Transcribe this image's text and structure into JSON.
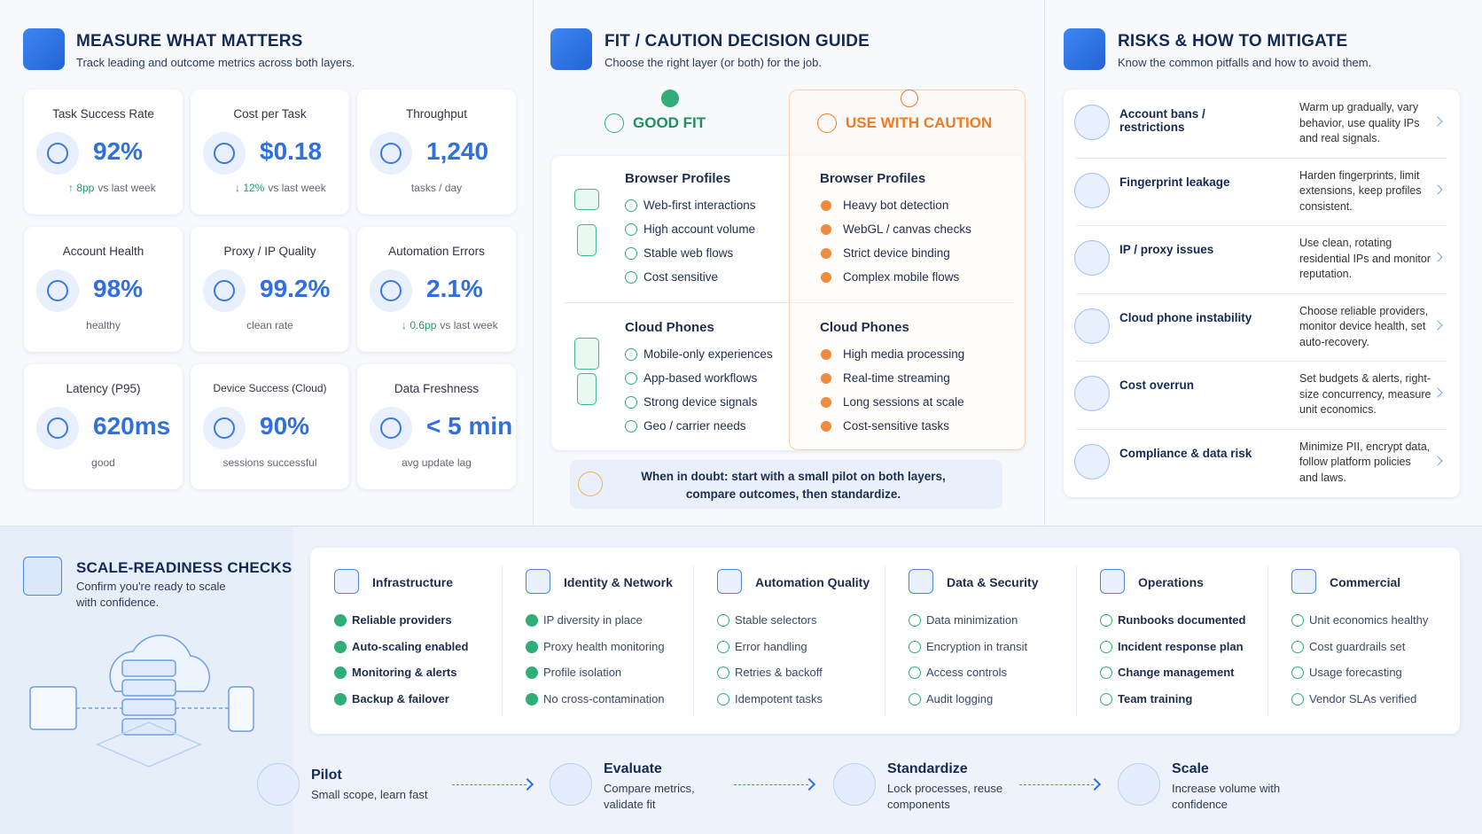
{
  "measure": {
    "title": "MEASURE WHAT MATTERS",
    "subtitle": "Track leading and outcome metrics across both layers.",
    "cards": [
      {
        "label": "Task Success Rate",
        "value": "92%",
        "change": "↑ 8pp",
        "note": "vs last week"
      },
      {
        "label": "Cost per Task",
        "value": "$0.18",
        "change": "↓ 12%",
        "note": "vs last week"
      },
      {
        "label": "Throughput",
        "value": "1,240",
        "note": "tasks / day"
      },
      {
        "label": "Account Health",
        "value": "98%",
        "note": "healthy"
      },
      {
        "label": "Proxy / IP Quality",
        "value": "99.2%",
        "note": "clean rate"
      },
      {
        "label": "Automation Errors",
        "value": "2.1%",
        "change": "↓ 0.6pp",
        "note": "vs last week"
      },
      {
        "label": "Latency (P95)",
        "value": "620ms",
        "note": "good"
      },
      {
        "label": "Device Success (Cloud)",
        "value": "90%",
        "note": "sessions successful"
      },
      {
        "label": "Data Freshness",
        "value": "< 5 min",
        "note": "avg update lag"
      }
    ]
  },
  "fit": {
    "title": "FIT / CAUTION DECISION GUIDE",
    "subtitle": "Choose the right layer (or both) for the job.",
    "good_label": "GOOD FIT",
    "caution_label": "USE WITH CAUTION",
    "sections": [
      {
        "good_title": "Browser Profiles",
        "good": [
          "Web-first interactions",
          "High account volume",
          "Stable web flows",
          "Cost sensitive"
        ],
        "caution_title": "Browser Profiles",
        "caution": [
          "Heavy bot detection",
          "WebGL / canvas checks",
          "Strict device binding",
          "Complex mobile flows"
        ]
      },
      {
        "good_title": "Cloud Phones",
        "good": [
          "Mobile-only experiences",
          "App-based workflows",
          "Strong device signals",
          "Geo / carrier needs"
        ],
        "caution_title": "Cloud Phones",
        "caution": [
          "High media processing",
          "Real-time streaming",
          "Long sessions at scale",
          "Cost-sensitive tasks"
        ]
      }
    ],
    "tip": "When in doubt: start with a small pilot on both layers, compare outcomes, then standardize."
  },
  "risks": {
    "title": "RISKS & HOW TO MITIGATE",
    "subtitle": "Know the common pitfalls and how to avoid them.",
    "items": [
      {
        "title": "Account bans / restrictions",
        "mitigation": "Warm up gradually, vary behavior, use quality IPs and real signals."
      },
      {
        "title": "Fingerprint leakage",
        "mitigation": "Harden fingerprints, limit extensions, keep profiles consistent."
      },
      {
        "title": "IP / proxy issues",
        "mitigation": "Use clean, rotating residential IPs and monitor reputation."
      },
      {
        "title": "Cloud phone instability",
        "mitigation": "Choose reliable providers, monitor device health, set auto-recovery."
      },
      {
        "title": "Cost overrun",
        "mitigation": "Set budgets & alerts, right-size concurrency, measure unit economics."
      },
      {
        "title": "Compliance & data risk",
        "mitigation": "Minimize PII, encrypt data, follow platform policies and laws."
      }
    ]
  },
  "checks": {
    "title": "SCALE-READINESS CHECKS",
    "subtitle": "Confirm you're ready to scale with confidence.",
    "groups": [
      {
        "title": "Infrastructure",
        "items": [
          "Reliable providers",
          "Auto-scaling enabled",
          "Monitoring & alerts",
          "Backup & failover"
        ]
      },
      {
        "title": "Identity & Network",
        "items": [
          "IP diversity in place",
          "Proxy health monitoring",
          "Profile isolation",
          "No cross-contamination"
        ]
      },
      {
        "title": "Automation Quality",
        "items": [
          "Stable selectors",
          "Error handling",
          "Retries & backoff",
          "Idempotent tasks"
        ]
      },
      {
        "title": "Data & Security",
        "items": [
          "Data minimization",
          "Encryption in transit",
          "Access controls",
          "Audit logging"
        ]
      },
      {
        "title": "Operations",
        "items": [
          "Runbooks documented",
          "Incident response plan",
          "Change management",
          "Team training"
        ]
      },
      {
        "title": "Commercial",
        "items": [
          "Unit economics healthy",
          "Cost guardrails set",
          "Usage forecasting",
          "Vendor SLAs verified"
        ]
      }
    ]
  },
  "steps": [
    {
      "title": "Pilot",
      "description": "Small scope, learn fast"
    },
    {
      "title": "Evaluate",
      "description": "Compare metrics, validate fit"
    },
    {
      "title": "Standardize",
      "description": "Lock processes, reuse components"
    },
    {
      "title": "Scale",
      "description": "Increase volume with confidence"
    }
  ]
}
